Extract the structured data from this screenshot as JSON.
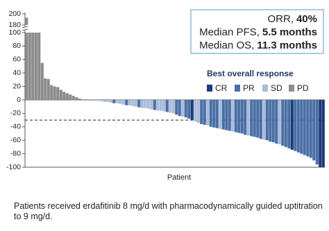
{
  "chart_data": {
    "type": "waterfall",
    "x_label": "Patient",
    "xlim": [
      0.5,
      96.5
    ],
    "ylim": [
      -100,
      100
    ],
    "yticks": [
      -100,
      -80,
      -60,
      -40,
      -20,
      0,
      20,
      40,
      60,
      80,
      100
    ],
    "ylim_upper": [
      180,
      200
    ],
    "yticks_upper": [
      180,
      200
    ],
    "reference_line": -30,
    "annotations": [
      {
        "label": "ORR,",
        "value": "40%"
      },
      {
        "label": "Median PFS,",
        "value": "5.5 months"
      },
      {
        "label": "Median OS,",
        "value": "11.3 months"
      }
    ],
    "legend_title": "Best overall response",
    "series": [
      {
        "name": "CR",
        "color": "#1b3a78",
        "x": [
          54,
          86,
          95,
          96
        ],
        "values": [
          -30,
          -74,
          -100,
          -100
        ]
      },
      {
        "name": "PR",
        "color": "#4a6fa5",
        "x": [
          29,
          33,
          37,
          42,
          46,
          49,
          50,
          52,
          53,
          57,
          58,
          60,
          61,
          62,
          64,
          65,
          66,
          68,
          69,
          70,
          71,
          73,
          74,
          75,
          76,
          78,
          79,
          80,
          81,
          83,
          84,
          85,
          87,
          88,
          89,
          90,
          91,
          92,
          93,
          94
        ],
        "values": [
          -5,
          -8,
          -11,
          -15,
          -18,
          -22,
          -24,
          -26,
          -28,
          -36,
          -37,
          -40,
          -41,
          -42,
          -44,
          -45,
          -46,
          -48,
          -49,
          -50,
          -52,
          -54,
          -55,
          -56,
          -58,
          -60,
          -62,
          -63,
          -65,
          -68,
          -70,
          -72,
          -76,
          -78,
          -80,
          -82,
          -84,
          -86,
          -90,
          -96
        ]
      },
      {
        "name": "SD",
        "color": "#a9bcd9",
        "x": [
          19,
          20,
          21,
          22,
          23,
          24,
          25,
          26,
          27,
          28,
          30,
          31,
          32,
          34,
          35,
          36,
          38,
          39,
          40,
          41,
          43,
          44,
          45,
          47,
          48,
          51,
          55,
          56,
          59,
          63,
          67,
          72,
          77,
          82
        ],
        "values": [
          0,
          0,
          0,
          0,
          0,
          0,
          -2,
          -3,
          -3,
          -4,
          -5,
          -6,
          -7,
          -8,
          -9,
          -10,
          -12,
          -12,
          -13,
          -14,
          -16,
          -16,
          -17,
          -19,
          -20,
          -25,
          -32,
          -34,
          -38,
          -43,
          -47,
          -53,
          -59,
          -66
        ]
      },
      {
        "name": "PD",
        "color": "#8c8c8c",
        "x": [
          1,
          2,
          3,
          4,
          5,
          6,
          7,
          8,
          9,
          10,
          11,
          12,
          13,
          14,
          15,
          16,
          17,
          18
        ],
        "values": [
          193,
          100,
          100,
          100,
          100,
          55,
          32,
          31,
          22,
          20,
          19,
          15,
          12,
          10,
          8,
          6,
          4,
          2
        ]
      }
    ]
  },
  "footnote": "Patients received erdafitinib 8 mg/d with pharmacodynamically guided uptitration to 9 mg/d."
}
